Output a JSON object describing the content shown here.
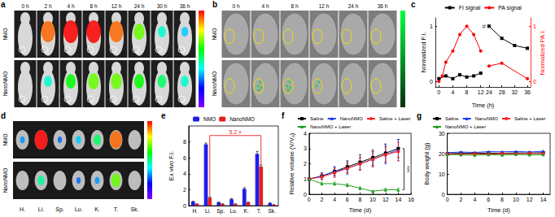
{
  "images": [
    {
      "panel": "a",
      "columns": [
        "0 h",
        "2 h",
        "4 h",
        "8 h",
        "12 h",
        "24 h",
        "30 h",
        "36 h"
      ],
      "rows": [
        "NMO",
        "NanoNMO"
      ]
    },
    {
      "panel": "b",
      "columns": [
        "0 h",
        "4 h",
        "8 h",
        "12 h",
        "24 h",
        "36 h"
      ],
      "rows": [
        "NMO",
        "NanoNMO"
      ]
    },
    {
      "panel": "d",
      "columns": [
        "H.",
        "Li.",
        "Sp.",
        "Lu.",
        "K.",
        "T.",
        "Sk."
      ],
      "rows": [
        "NMO",
        "NanoNMO"
      ]
    }
  ],
  "chart_data": [
    {
      "panel": "c",
      "type": "line",
      "x_label": "Time (h)",
      "y_label": "Normalized F.I.",
      "y2_label": "Normalized PA.I.",
      "x_segments": [
        {
          "xlim": [
            -1,
            13
          ],
          "xticks": [
            0,
            4,
            8,
            12
          ]
        },
        {
          "xlim": [
            23,
            37
          ],
          "xticks": [
            24,
            28,
            32,
            36
          ]
        }
      ],
      "ylim": [
        -0.1,
        1.15
      ],
      "yticks": [
        0,
        1
      ],
      "y2lim": [
        -0.1,
        1.15
      ],
      "y2ticks": [
        0,
        1
      ],
      "legend": "top",
      "series": [
        {
          "name": "FI signal",
          "color": "#000000",
          "marker": "square",
          "x": [
            0,
            2,
            4,
            6,
            8,
            10,
            12,
            24,
            28,
            32,
            36
          ],
          "values": [
            0.05,
            0.1,
            0.05,
            0.12,
            0.08,
            0.1,
            0.15,
            1.0,
            0.78,
            0.65,
            0.6
          ]
        },
        {
          "name": "PA signal",
          "color": "#ff0000",
          "marker": "circle",
          "axis": "y2",
          "x": [
            0,
            1,
            2,
            4,
            6,
            8,
            10,
            12,
            24,
            28,
            36
          ],
          "values": [
            0,
            0.1,
            0.35,
            0.55,
            0.85,
            1.0,
            0.85,
            0.55,
            0.28,
            0.33,
            0.05
          ]
        }
      ],
      "annotations": [
        {
          "text": "#",
          "x": 24,
          "y": 1.0
        }
      ]
    },
    {
      "panel": "e",
      "type": "bar",
      "y_label": "Ex vivo F.I.",
      "categories": [
        "H.",
        "Li.",
        "Sp.",
        "Lu.",
        "K.",
        "T.",
        "Sk."
      ],
      "ylim": [
        0,
        10
      ],
      "yticks": [
        0,
        2,
        4,
        6,
        8
      ],
      "legend": "top",
      "series": [
        {
          "name": "NMO",
          "color": "#2020e6",
          "values": [
            0.5,
            7.7,
            0.4,
            0.8,
            2.1,
            6.5,
            0.3
          ],
          "errors": [
            0.05,
            0.15,
            0.05,
            0.1,
            0.15,
            0.3,
            0.05
          ]
        },
        {
          "name": "NanoNMO",
          "color": "#e62020",
          "values": [
            0.2,
            1.0,
            0.2,
            0.2,
            0.4,
            4.9,
            0.1
          ],
          "errors": [
            0.03,
            0.1,
            0.03,
            0.03,
            0.05,
            0.2,
            0.02
          ]
        }
      ],
      "annotations": [
        {
          "text": "5.2 ×",
          "from": "Li.",
          "to": "T.",
          "y": 8.8,
          "series": "NanoNMO"
        }
      ]
    },
    {
      "panel": "f",
      "type": "line",
      "x_label": "Time (d)",
      "y_label": "Relative volume (V/V₀)",
      "x": [
        0,
        2,
        4,
        6,
        8,
        10,
        12,
        14
      ],
      "xlim": [
        0,
        16
      ],
      "xticks": [
        0,
        2,
        4,
        6,
        8,
        10,
        12,
        14,
        16
      ],
      "ylim": [
        0,
        4
      ],
      "yticks": [
        0,
        1,
        2,
        3,
        4
      ],
      "legend": "top",
      "series": [
        {
          "name": "Saline",
          "color": "#000000",
          "marker": "square",
          "values": [
            1,
            1.2,
            1.5,
            1.8,
            2.1,
            2.4,
            2.7,
            3.0
          ],
          "errors": [
            0,
            0.2,
            0.3,
            0.4,
            0.5,
            0.5,
            0.6,
            0.6
          ]
        },
        {
          "name": "NanoNMO",
          "color": "#1f3fff",
          "marker": "triangle",
          "values": [
            1,
            1.2,
            1.5,
            1.7,
            2.0,
            2.3,
            2.6,
            2.9
          ],
          "errors": [
            0,
            0.2,
            0.3,
            0.4,
            0.4,
            0.5,
            0.6,
            0.7
          ]
        },
        {
          "name": "Saline + Laser",
          "color": "#ff2020",
          "marker": "circle",
          "values": [
            1,
            1.15,
            1.4,
            1.7,
            2.0,
            2.3,
            2.6,
            2.8
          ],
          "errors": [
            0,
            0.2,
            0.3,
            0.3,
            0.4,
            0.5,
            0.5,
            0.6
          ]
        },
        {
          "name": "NanoNMO + Laser",
          "color": "#1fa01f",
          "marker": "triangle",
          "values": [
            1,
            0.7,
            0.7,
            0.6,
            0.4,
            0.2,
            0.3,
            0.3
          ],
          "errors": [
            0,
            0.1,
            0.1,
            0.1,
            0.1,
            0.05,
            0.1,
            0.1
          ]
        }
      ],
      "annotations": [
        {
          "text": "***",
          "x": 14.9,
          "from": "NanoNMO + Laser",
          "to": "Saline"
        }
      ]
    },
    {
      "panel": "g",
      "type": "line",
      "x_label": "Time (d)",
      "y_label": "Body weight (g)",
      "x": [
        0,
        2,
        4,
        6,
        8,
        10,
        12,
        14
      ],
      "xlim": [
        0,
        15
      ],
      "xticks": [
        0,
        2,
        4,
        6,
        8,
        10,
        12,
        14
      ],
      "ylim": [
        0,
        30
      ],
      "yticks": [
        0,
        10,
        20,
        30
      ],
      "legend": "top",
      "series": [
        {
          "name": "Saline",
          "color": "#000000",
          "marker": "square",
          "values": [
            20,
            20.2,
            20.1,
            20.3,
            20.2,
            20.4,
            20.3,
            20.5
          ]
        },
        {
          "name": "NanoNMO",
          "color": "#1f3fff",
          "marker": "triangle",
          "values": [
            20.5,
            20.8,
            20.6,
            21,
            20.9,
            21.1,
            20.8,
            21.2
          ]
        },
        {
          "name": "Saline + Laser",
          "color": "#ff2020",
          "marker": "circle",
          "values": [
            19.8,
            19.6,
            19.9,
            19.7,
            20,
            19.8,
            20.1,
            19.9
          ]
        },
        {
          "name": "NanoNMO + Laser",
          "color": "#1fa01f",
          "marker": "triangle",
          "values": [
            19.5,
            19.4,
            19.2,
            19.5,
            19.3,
            19.6,
            19.4,
            19.5
          ]
        }
      ]
    }
  ]
}
